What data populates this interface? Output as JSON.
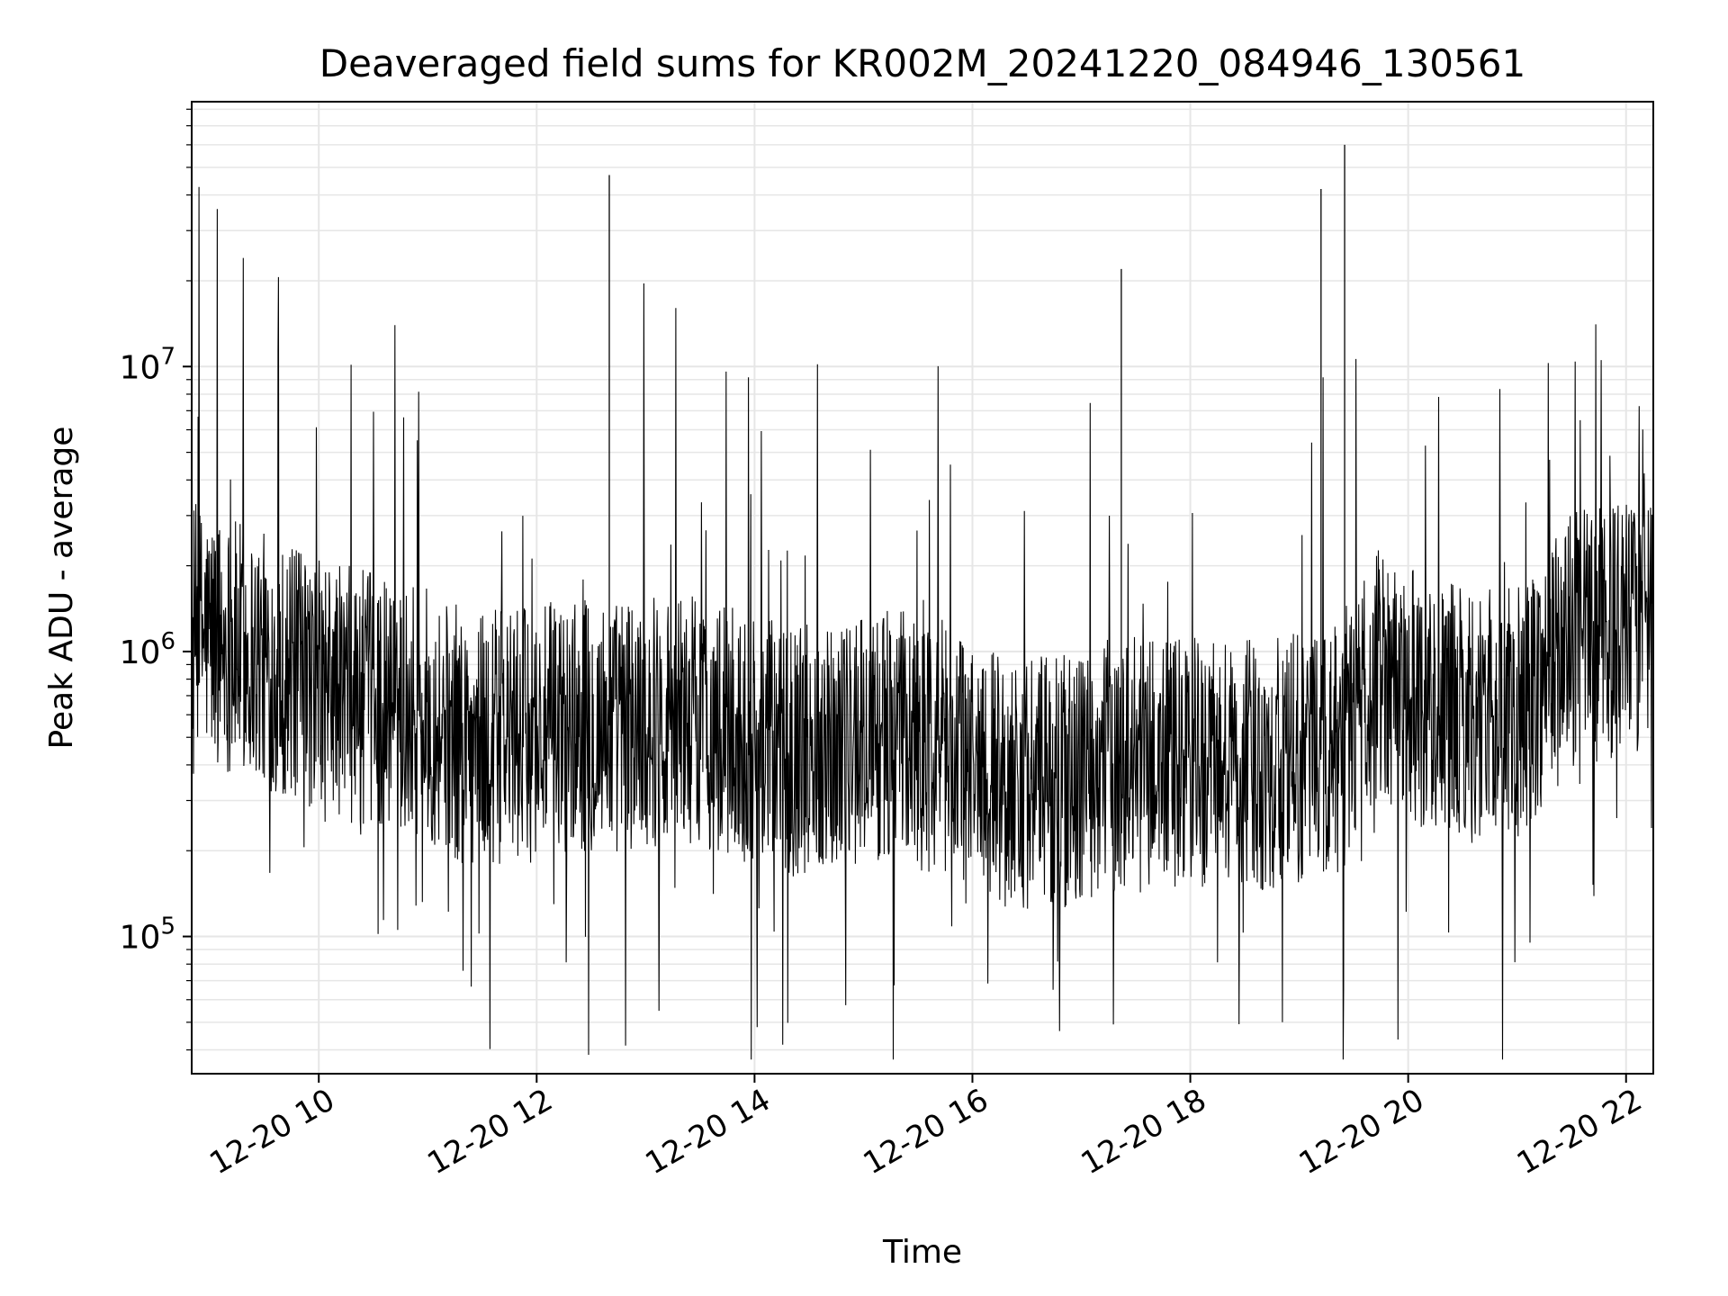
{
  "chart_data": {
    "type": "line",
    "title": "Deaveraged field sums for KR002M_20241220_084946_130561",
    "xlabel": "Time",
    "ylabel": "Peak ADU - average",
    "y_scale": "log",
    "ylim": [
      33000,
      85000000
    ],
    "xlim": [
      "2024-12-20 08:50",
      "2024-12-20 22:15"
    ],
    "grid": true,
    "line_color": "#000000",
    "grid_color": "#e6e6e6",
    "x_ticks": [
      {
        "value": "2024-12-20 10:00",
        "label": "12-20 10"
      },
      {
        "value": "2024-12-20 12:00",
        "label": "12-20 12"
      },
      {
        "value": "2024-12-20 14:00",
        "label": "12-20 14"
      },
      {
        "value": "2024-12-20 16:00",
        "label": "12-20 16"
      },
      {
        "value": "2024-12-20 18:00",
        "label": "12-20 18"
      },
      {
        "value": "2024-12-20 20:00",
        "label": "12-20 20"
      },
      {
        "value": "2024-12-20 22:00",
        "label": "12-20 22"
      }
    ],
    "y_ticks": [
      {
        "value": 100000,
        "base": "10",
        "exp": "5"
      },
      {
        "value": 1000000,
        "base": "10",
        "exp": "6"
      },
      {
        "value": 10000000,
        "base": "10",
        "exp": "7"
      }
    ],
    "series": [
      {
        "x": [
          "2024-12-20 08:50",
          "2024-12-20 09:20",
          "2024-12-20 09:50",
          "2024-12-20 10:20",
          "2024-12-20 10:50",
          "2024-12-20 11:20",
          "2024-12-20 11:50",
          "2024-12-20 12:20",
          "2024-12-20 12:50",
          "2024-12-20 13:20",
          "2024-12-20 13:50",
          "2024-12-20 14:20",
          "2024-12-20 14:50",
          "2024-12-20 15:20",
          "2024-12-20 15:50",
          "2024-12-20 16:20",
          "2024-12-20 16:50",
          "2024-12-20 17:20",
          "2024-12-20 17:50",
          "2024-12-20 18:20",
          "2024-12-20 18:50",
          "2024-12-20 19:20",
          "2024-12-20 19:45",
          "2024-12-20 20:00",
          "2024-12-20 20:30",
          "2024-12-20 21:00",
          "2024-12-20 21:30",
          "2024-12-20 22:00",
          "2024-12-20 22:15"
        ],
        "y": [
          1200000,
          1000000,
          800000,
          700000,
          650000,
          500000,
          500000,
          550000,
          550000,
          600000,
          500000,
          450000,
          500000,
          500000,
          450000,
          350000,
          350000,
          400000,
          400000,
          400000,
          400000,
          450000,
          900000,
          700000,
          600000,
          600000,
          1100000,
          1200000,
          1200000
        ]
      }
    ],
    "spikes": [
      {
        "x": "2024-12-20 12:40",
        "y": 47000000
      },
      {
        "x": "2024-12-20 17:22",
        "y": 22000000
      },
      {
        "x": "2024-12-20 19:12",
        "y": 42000000
      },
      {
        "x": "2024-12-20 19:25",
        "y": 60000000
      }
    ]
  }
}
